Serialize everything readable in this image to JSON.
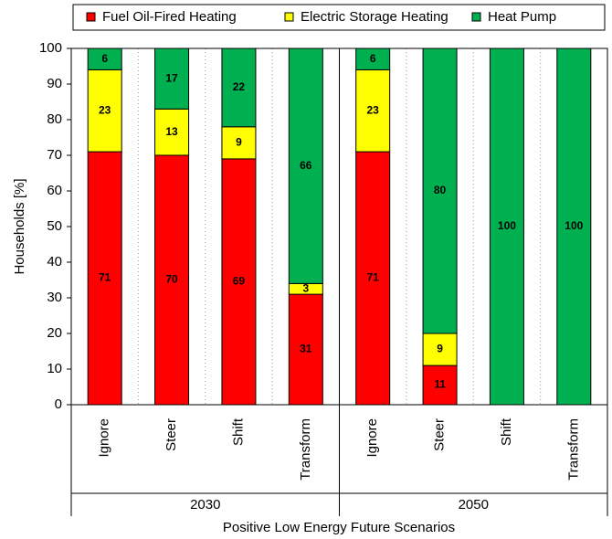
{
  "chart_data": {
    "type": "stacked-bar",
    "categories": [
      "Ignore",
      "Steer",
      "Shift",
      "Transform",
      "Ignore",
      "Steer",
      "Shift",
      "Transform"
    ],
    "groups": [
      "2030",
      "2050"
    ],
    "series": [
      {
        "name": "Fuel Oil-Fired Heating",
        "color": "#ff0000",
        "values": [
          71,
          70,
          69,
          31,
          71,
          11,
          0,
          0
        ]
      },
      {
        "name": "Electric Storage Heating",
        "color": "#ffff00",
        "values": [
          23,
          13,
          9,
          3,
          23,
          9,
          0,
          0
        ]
      },
      {
        "name": "Heat Pump",
        "color": "#00b050",
        "values": [
          6,
          17,
          22,
          66,
          6,
          80,
          100,
          100
        ]
      }
    ],
    "xlabel": "Positive Low Energy Future Scenarios",
    "ylabel": "Households [%]",
    "ylim": [
      0,
      100
    ],
    "yticks": [
      0,
      10,
      20,
      30,
      40,
      50,
      60,
      70,
      80,
      90,
      100
    ],
    "legend": "top"
  }
}
